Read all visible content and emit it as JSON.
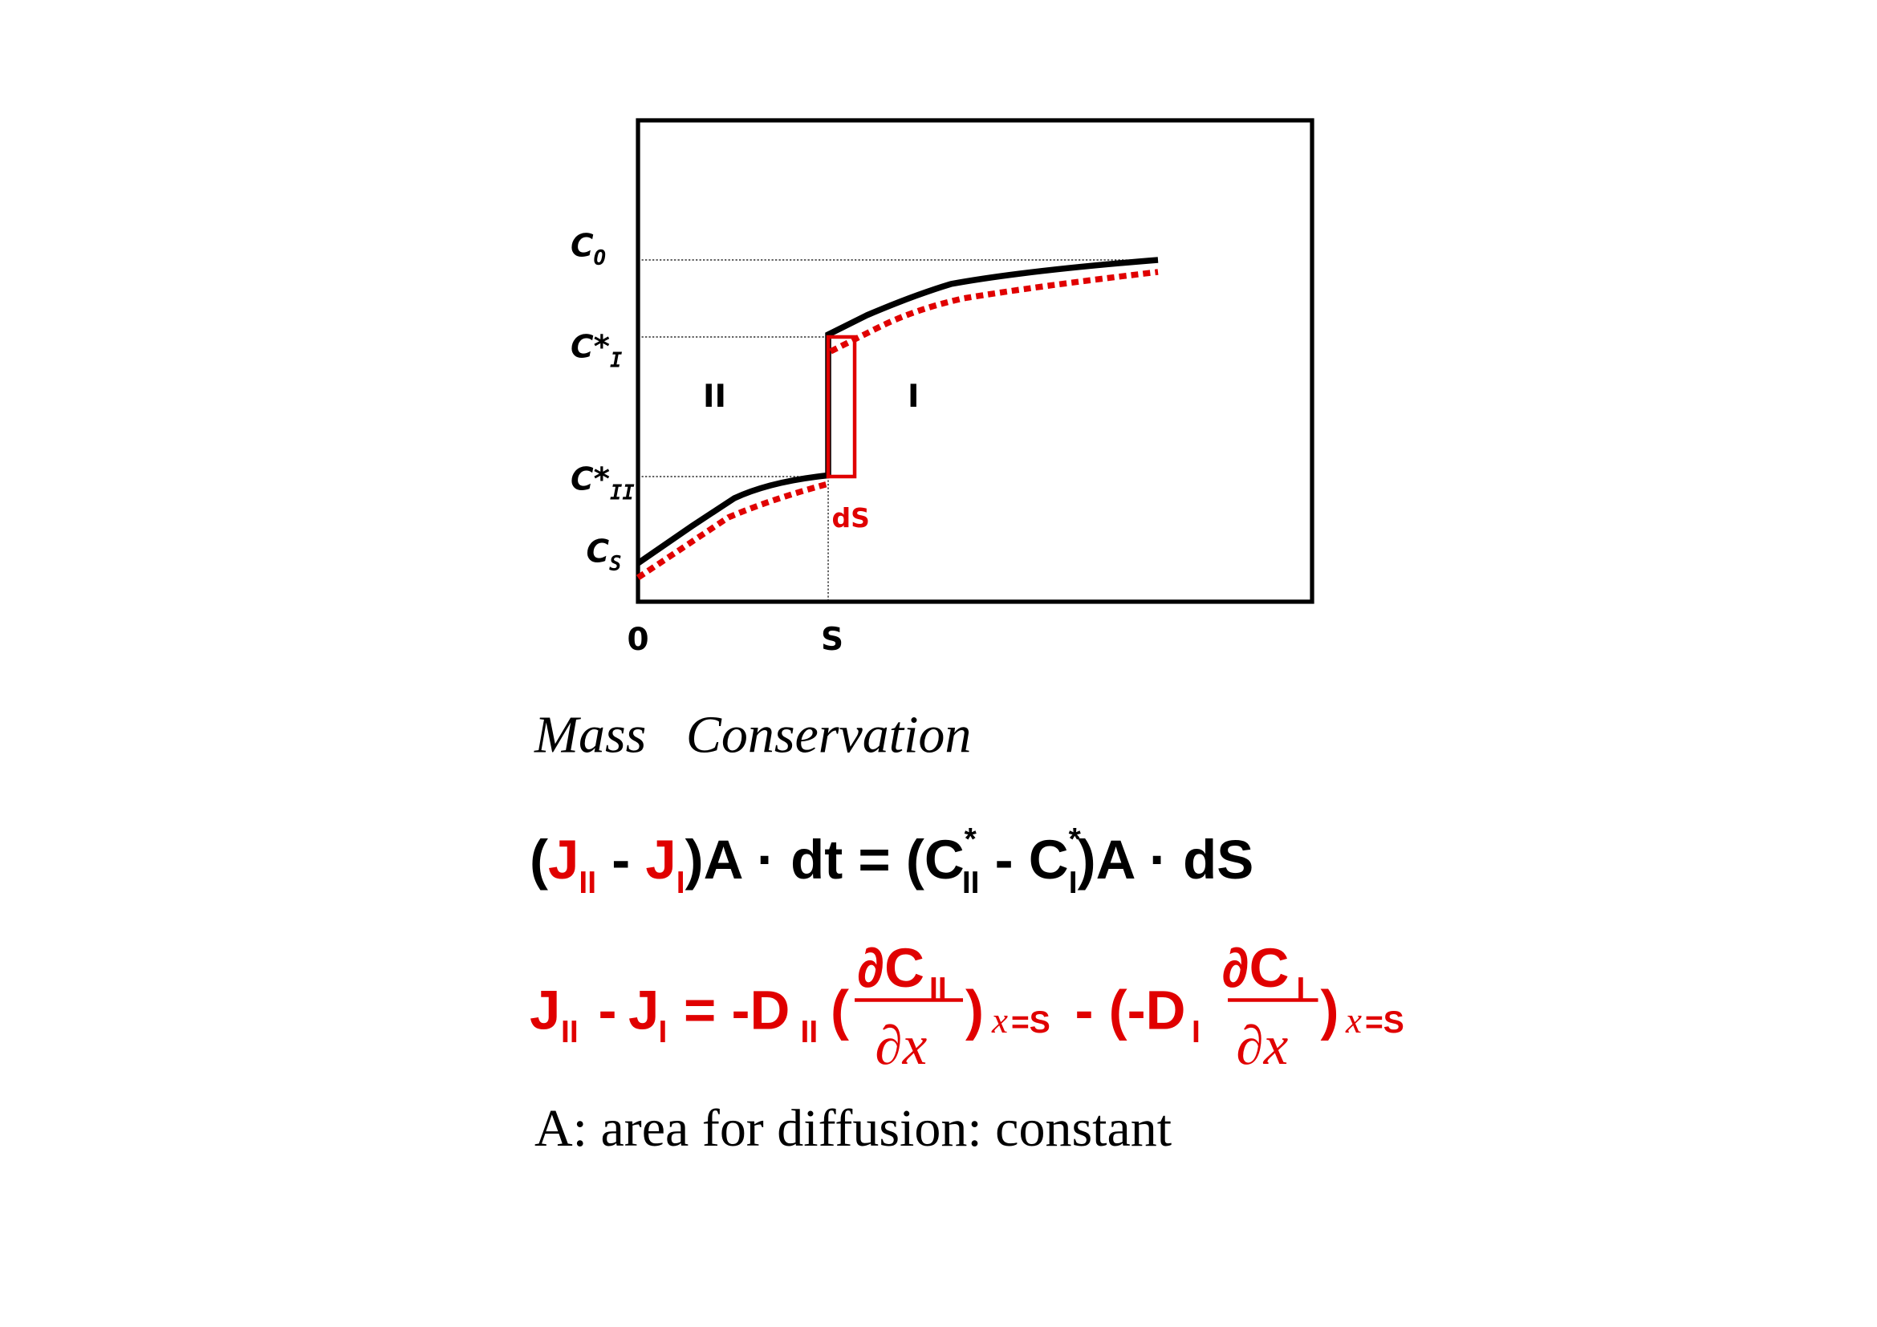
{
  "diagram": {
    "y_labels": [
      {
        "main": "C",
        "sub": "O"
      },
      {
        "main": "C*",
        "sub": "I"
      },
      {
        "main": "C*",
        "sub": "II"
      },
      {
        "main": "C",
        "sub": "S"
      }
    ],
    "regions": [
      "II",
      "I"
    ],
    "interface_label": "dS",
    "x_labels": [
      "0",
      "S"
    ]
  },
  "caption": "Mass   Conservation",
  "equation_1": [
    "(",
    "J",
    "II",
    " - ",
    "J",
    "I",
    ")A · dt = (C",
    "*",
    "II",
    " - C",
    "*",
    "I",
    ")A · dS"
  ],
  "equation_2": [
    "J",
    "II",
    "-",
    "J",
    "I",
    "= -D",
    "II",
    "(",
    "∂C",
    "II",
    "∂x",
    ")",
    "x",
    "=S",
    "- (-D",
    "I",
    "∂C",
    "I",
    "∂x",
    ")",
    "x",
    "=S"
  ],
  "note": "A: area for diffusion: constant"
}
